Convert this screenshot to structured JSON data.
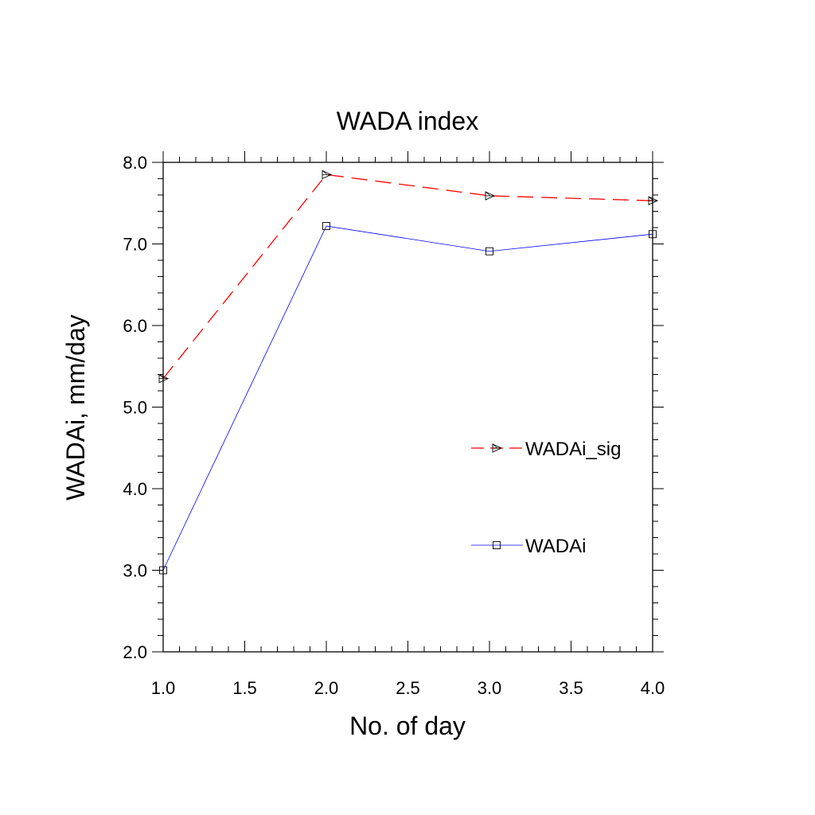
{
  "chart_data": {
    "type": "line",
    "title": "WADA index",
    "xlabel": "No. of day",
    "ylabel": "WADAi, mm/day",
    "xlim": [
      1.0,
      4.0
    ],
    "ylim": [
      2.0,
      8.0
    ],
    "xticks": [
      "1.0",
      "1.5",
      "2.0",
      "2.5",
      "3.0",
      "3.5",
      "4.0"
    ],
    "yticks": [
      "2.0",
      "3.0",
      "4.0",
      "5.0",
      "6.0",
      "7.0",
      "8.0"
    ],
    "x": [
      1,
      2,
      3,
      4
    ],
    "grid": false,
    "legend_position": "right",
    "series": [
      {
        "name": "WADAi_sig",
        "values": [
          5.35,
          7.85,
          7.59,
          7.53
        ],
        "color": "#ff0000",
        "line_style": "dashed",
        "marker": "triangle-right"
      },
      {
        "name": "WADAi",
        "values": [
          3.0,
          7.22,
          6.91,
          7.12
        ],
        "color": "#0000ff",
        "line_style": "solid",
        "marker": "square"
      }
    ]
  }
}
